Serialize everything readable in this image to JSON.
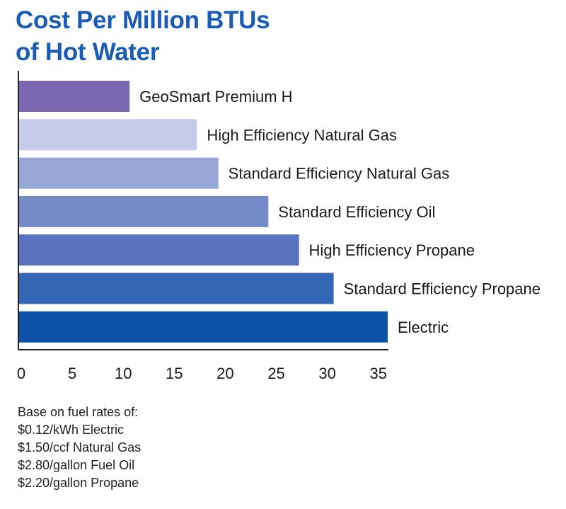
{
  "chart_data": {
    "type": "bar",
    "orientation": "horizontal",
    "title": "Cost Per Million BTUs of Hot Water",
    "title_lines": [
      "Cost Per Million BTUs",
      "of Hot Water"
    ],
    "categories": [
      "GeoSmart Premium H",
      "High Efficiency Natural Gas",
      "Standard Efficiency Natural Gas",
      "Standard Efficiency Oil",
      "High Efficiency Propane",
      "Standard Efficiency Propane",
      "Electric"
    ],
    "values": [
      10.9,
      17.5,
      19.6,
      24.5,
      27.5,
      30.9,
      36.2
    ],
    "colors": [
      "#7b68b0",
      "#c5cbe8",
      "#97a6d6",
      "#7689c9",
      "#5a72c0",
      "#3566b5",
      "#0c52a6"
    ],
    "xlim": [
      0,
      36
    ],
    "xticks": [
      0,
      5,
      10,
      15,
      20,
      25,
      30,
      35
    ],
    "xlabel": "",
    "ylabel": "",
    "grid": false,
    "axis_color": "#222222"
  },
  "notes": {
    "heading": "Base on fuel rates of:",
    "lines": [
      "$0.12/kWh Electric",
      "$1.50/ccf Natural Gas",
      "$2.80/gallon Fuel Oil",
      "$2.20/gallon Propane"
    ]
  }
}
